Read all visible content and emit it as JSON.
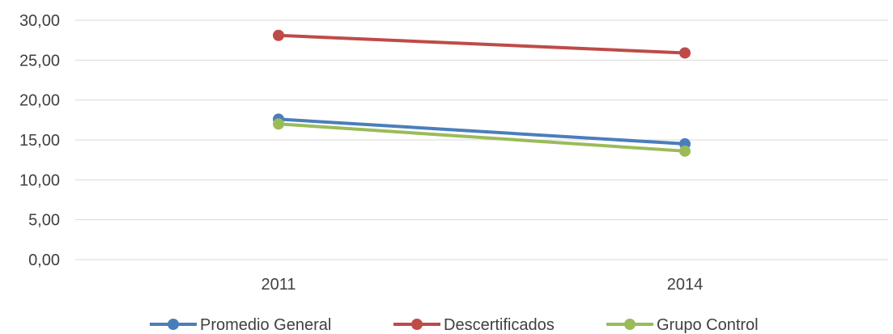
{
  "chart_data": {
    "type": "line",
    "title": "",
    "xlabel": "",
    "ylabel": "",
    "categories": [
      "2011",
      "2014"
    ],
    "series": [
      {
        "name": "Promedio General",
        "values": [
          17.6,
          14.5
        ],
        "color": "#4A7EBB"
      },
      {
        "name": "Descertificados",
        "values": [
          28.1,
          25.9
        ],
        "color": "#BE4B48"
      },
      {
        "name": "Grupo Control",
        "values": [
          17.0,
          13.6
        ],
        "color": "#9BBB59"
      }
    ],
    "ylim": [
      0,
      30
    ],
    "y_ticks": [
      0,
      5,
      10,
      15,
      20,
      25,
      30
    ],
    "y_tick_labels": [
      "0,00",
      "5,00",
      "10,00",
      "15,00",
      "20,00",
      "25,00",
      "30,00"
    ],
    "grid": true,
    "gridline_color": "#D9D9D9",
    "legend_position": "bottom"
  }
}
